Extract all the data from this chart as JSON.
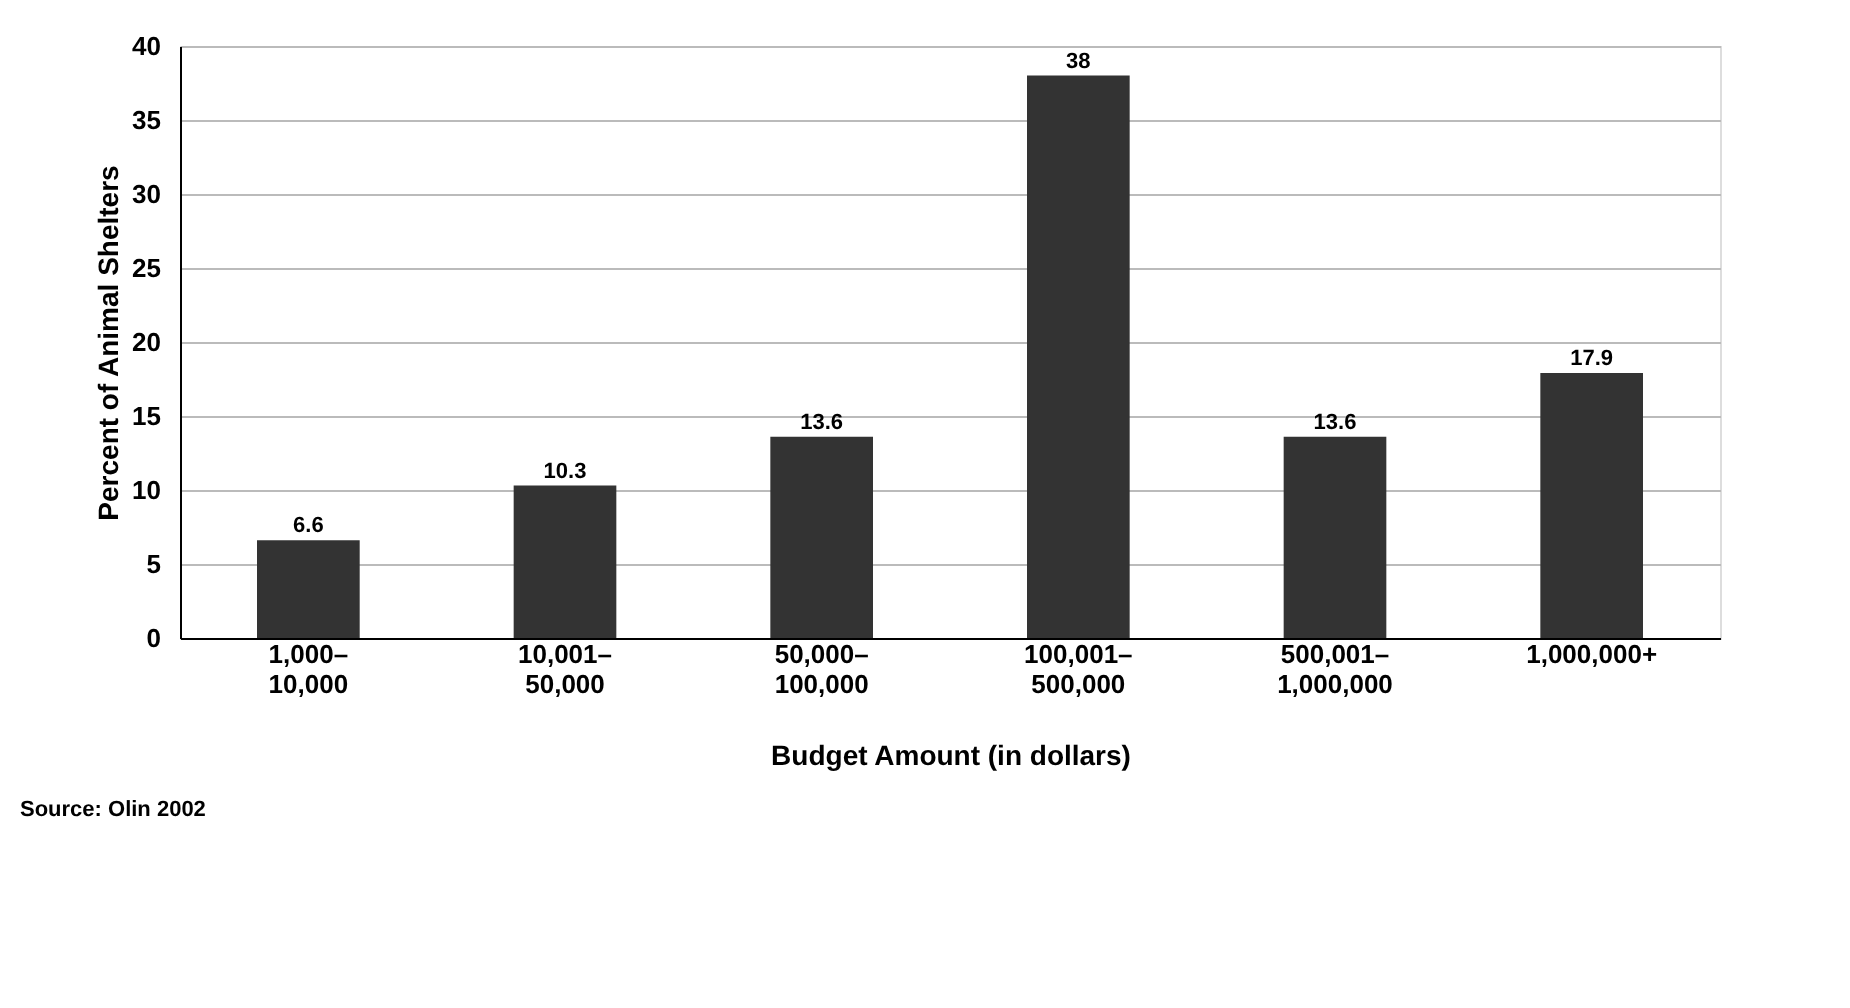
{
  "chart_data": {
    "type": "bar",
    "ylabel": "Percent of Animal Shelters",
    "xlabel": "Budget Amount (in dollars)",
    "annotations": [
      "Source: Olin 2002"
    ],
    "categories": [
      "1,000–\n10,000",
      "10,001–\n50,000",
      "50,000–\n100,000",
      "100,001–\n500,000",
      "500,001–\n1,000,000",
      "1,000,000+"
    ],
    "values": [
      6.6,
      10.3,
      13.6,
      38,
      13.6,
      17.9
    ],
    "color": "#333333",
    "ylim": [
      0,
      40
    ],
    "yticks": [
      0,
      5,
      10,
      15,
      20,
      25,
      30,
      35,
      40
    ],
    "grid": "y",
    "data_labels": true
  }
}
